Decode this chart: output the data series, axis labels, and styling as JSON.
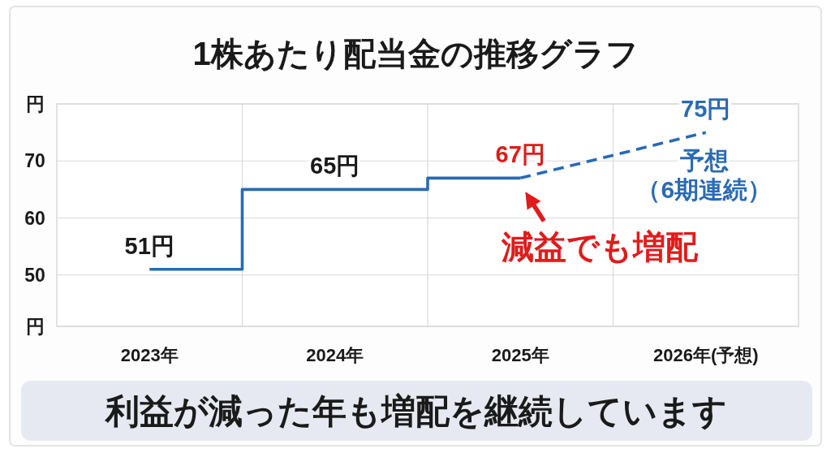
{
  "chart_data": {
    "type": "step",
    "title": "1株あたり配当金の推移グラフ",
    "categories": [
      "2023年",
      "2024年",
      "2025年",
      "2026年(予想)"
    ],
    "series": [
      {
        "color": "#2a6ab5",
        "line_style": "solid",
        "values": [
          51,
          65,
          67,
          null
        ],
        "value_labels": [
          "51円",
          "65円",
          "67円",
          null
        ]
      },
      {
        "type": "line",
        "color": "#2a6ab5",
        "line_style": "dashed",
        "values": [
          null,
          null,
          67,
          75
        ],
        "value_labels": [
          null,
          null,
          null,
          "75円"
        ]
      }
    ],
    "ylim": [
      41,
      80
    ],
    "yticks": [
      {
        "value": 80,
        "label": "円"
      },
      70,
      60,
      50,
      {
        "value": 41,
        "label": "円"
      }
    ],
    "grid": true,
    "annotations": [
      {
        "text": "減益でも増配",
        "x": "2025年",
        "y": 67
      },
      {
        "text": "予想",
        "x": "2026年(予想)",
        "y": 75
      },
      {
        "text": "（6期連続）",
        "x": "2026年(予想)",
        "y": 75
      },
      "利益が減った年も増配を継続しています"
    ]
  }
}
